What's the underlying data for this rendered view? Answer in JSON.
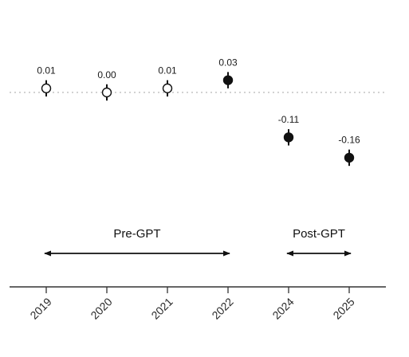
{
  "chart_data": {
    "type": "scatter",
    "title": "",
    "xlabel": "",
    "ylabel": "",
    "categories": [
      "2019",
      "2020",
      "2021",
      "2022",
      "2024",
      "2025"
    ],
    "points": [
      {
        "year": "2019",
        "value": 0.01,
        "label": "0.01",
        "ci": [
          -0.01,
          0.03
        ],
        "filled": false
      },
      {
        "year": "2020",
        "value": 0.0,
        "label": "0.00",
        "ci": [
          -0.02,
          0.02
        ],
        "filled": false
      },
      {
        "year": "2021",
        "value": 0.01,
        "label": "0.01",
        "ci": [
          -0.01,
          0.03
        ],
        "filled": false
      },
      {
        "year": "2022",
        "value": 0.03,
        "label": "0.03",
        "ci": [
          0.01,
          0.05
        ],
        "filled": true
      },
      {
        "year": "2024",
        "value": -0.11,
        "label": "-0.11",
        "ci": [
          -0.13,
          -0.09
        ],
        "filled": true
      },
      {
        "year": "2025",
        "value": -0.16,
        "label": "-0.16",
        "ci": [
          -0.18,
          -0.14
        ],
        "filled": true
      }
    ],
    "reference_line": 0,
    "periods": [
      {
        "label": "Pre-GPT",
        "from": "2019",
        "to": "2022"
      },
      {
        "label": "Post-GPT",
        "from": "2024",
        "to": "2025"
      }
    ]
  }
}
